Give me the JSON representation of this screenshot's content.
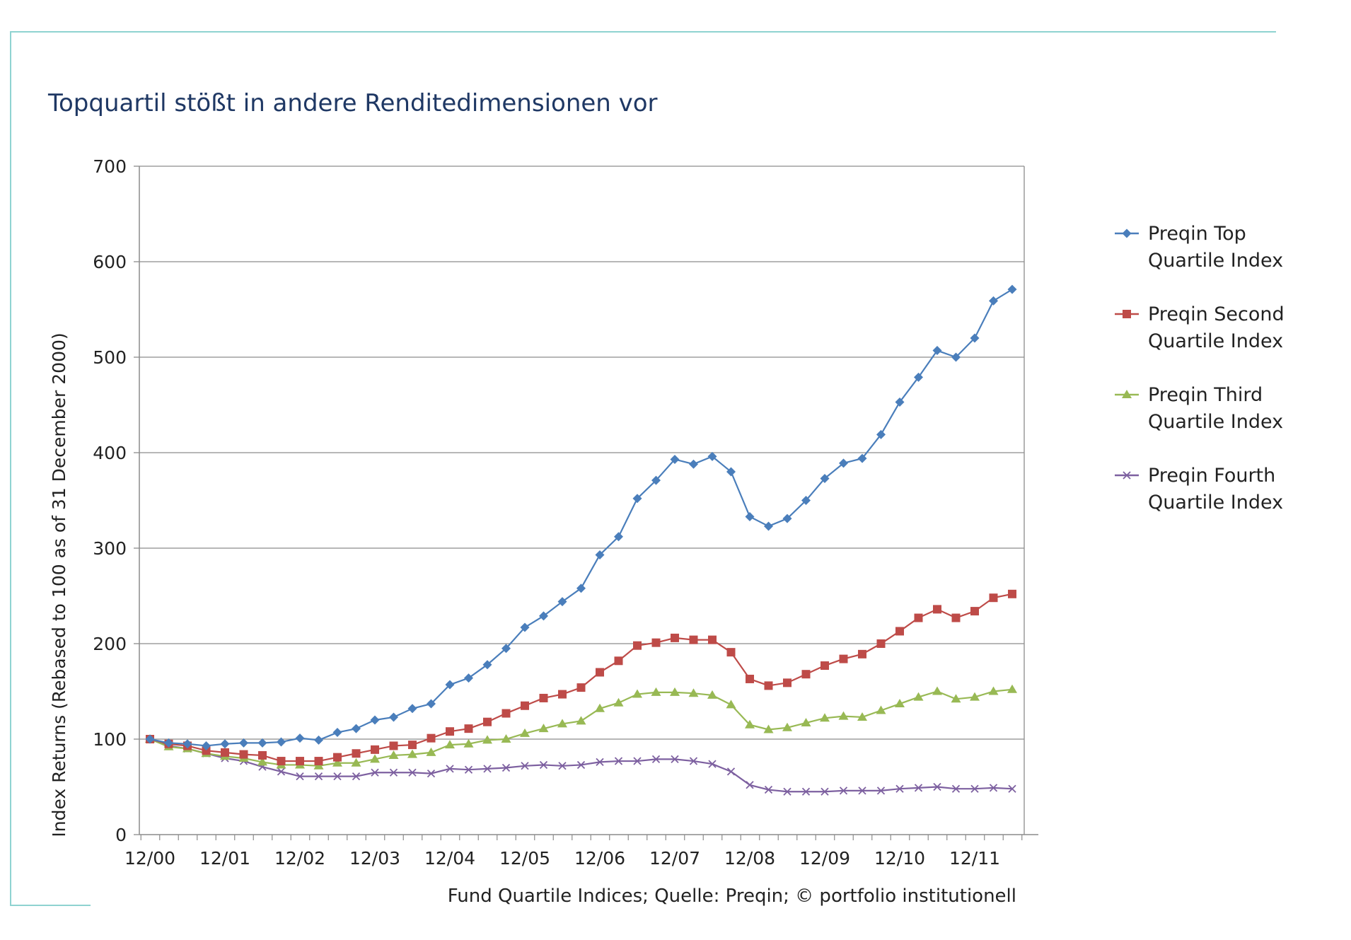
{
  "title": "Topquartil stößt in andere Renditedimensionen vor",
  "source": "Fund Quartile Indices; Quelle: Preqin; © portfolio institutionell",
  "chart_data": {
    "type": "line",
    "title": "Topquartil stößt in andere Renditedimensionen vor",
    "ylabel": "Index Returns (Rebased to 100 as of 31 December 2000)",
    "xlabel": "",
    "ylim": [
      0,
      700
    ],
    "yticks": [
      "0",
      "100",
      "200",
      "300",
      "400",
      "500",
      "600",
      "700"
    ],
    "xticks": [
      "12/00",
      "12/01",
      "12/02",
      "12/03",
      "12/04",
      "12/05",
      "12/06",
      "12/07",
      "12/08",
      "12/09",
      "12/10",
      "12/11"
    ],
    "grid": "horizontal",
    "legend_position": "right",
    "series": [
      {
        "name": "Preqin Top Quartile Index",
        "color": "#4a7ebb",
        "marker": "diamond",
        "values": [
          100,
          96,
          95,
          93,
          95,
          96,
          96,
          97,
          101,
          99,
          107,
          111,
          120,
          123,
          132,
          137,
          157,
          164,
          178,
          195,
          217,
          229,
          244,
          258,
          293,
          312,
          352,
          371,
          393,
          388,
          396,
          380,
          333,
          323,
          331,
          350,
          373,
          389,
          394,
          419,
          453,
          479,
          507,
          500,
          520,
          559,
          571
        ]
      },
      {
        "name": "Preqin Second Quartile Index",
        "color": "#be4b48",
        "marker": "square",
        "values": [
          100,
          95,
          93,
          88,
          86,
          84,
          83,
          77,
          77,
          77,
          81,
          85,
          89,
          93,
          94,
          101,
          108,
          111,
          118,
          127,
          135,
          143,
          147,
          154,
          170,
          182,
          198,
          201,
          206,
          204,
          204,
          191,
          163,
          156,
          159,
          168,
          177,
          184,
          189,
          200,
          213,
          227,
          236,
          227,
          234,
          248,
          252
        ]
      },
      {
        "name": "Preqin Third Quartile Index",
        "color": "#98b954",
        "marker": "triangle",
        "values": [
          100,
          92,
          90,
          85,
          82,
          80,
          76,
          73,
          73,
          72,
          75,
          75,
          79,
          83,
          84,
          86,
          94,
          95,
          99,
          100,
          106,
          111,
          116,
          119,
          132,
          138,
          147,
          149,
          149,
          148,
          146,
          136,
          115,
          110,
          112,
          117,
          122,
          124,
          123,
          130,
          137,
          144,
          150,
          142,
          144,
          150,
          152
        ]
      },
      {
        "name": "Preqin Fourth Quartile Index",
        "color": "#7d60a0",
        "marker": "x",
        "values": [
          100,
          93,
          90,
          85,
          80,
          77,
          71,
          66,
          61,
          61,
          61,
          61,
          65,
          65,
          65,
          64,
          69,
          68,
          69,
          70,
          72,
          73,
          72,
          73,
          76,
          77,
          77,
          79,
          79,
          77,
          74,
          66,
          52,
          47,
          45,
          45,
          45,
          46,
          46,
          46,
          48,
          49,
          50,
          48,
          48,
          49,
          48
        ]
      }
    ]
  }
}
